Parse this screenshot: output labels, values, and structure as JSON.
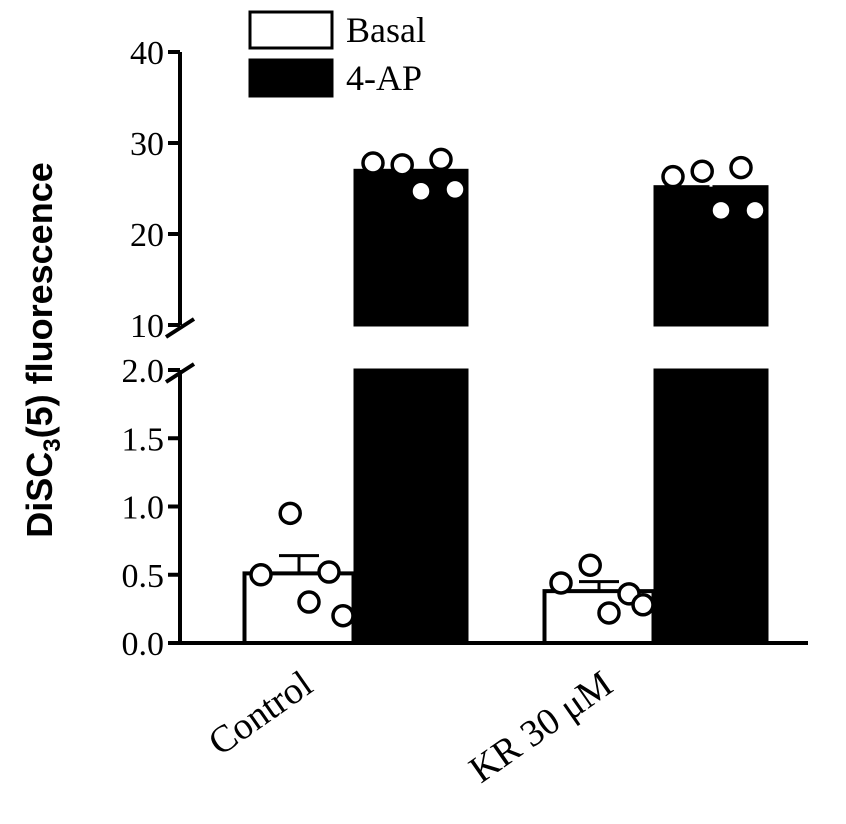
{
  "chart_data": {
    "type": "bar",
    "ylabel": {
      "main": "DiSC",
      "subscript": "3",
      "rest": "(5) fluorescence"
    },
    "categories": [
      "Control",
      "KR 30 μM"
    ],
    "axis_break": true,
    "ylim_lower": [
      0,
      2.0
    ],
    "ylim_upper": [
      10,
      40
    ],
    "yticks_lower": [
      {
        "value": 0.0,
        "label": "0.0"
      },
      {
        "value": 0.5,
        "label": "0.5"
      },
      {
        "value": 1.0,
        "label": "1.0"
      },
      {
        "value": 1.5,
        "label": "1.5"
      },
      {
        "value": 2.0,
        "label": "2.0"
      }
    ],
    "yticks_upper": [
      {
        "value": 10,
        "label": "10"
      },
      {
        "value": 20,
        "label": "20"
      },
      {
        "value": 30,
        "label": "30"
      },
      {
        "value": 40,
        "label": "40"
      }
    ],
    "series": [
      {
        "name": "Basal",
        "fill": "#ffffff",
        "values": [
          0.51,
          0.38
        ],
        "errors": [
          0.13,
          0.07
        ],
        "points": [
          [
            0.95,
            0.52,
            0.5,
            0.3,
            0.2
          ],
          [
            0.57,
            0.36,
            0.44,
            0.22,
            0.28
          ]
        ]
      },
      {
        "name": "4-AP",
        "fill": "#000000",
        "values": [
          27.0,
          25.2
        ],
        "errors": [
          0.7,
          0.9
        ],
        "points": [
          [
            27.6,
            28.2,
            27.8,
            24.7,
            24.9
          ],
          [
            26.9,
            27.3,
            26.3,
            22.6,
            22.6
          ]
        ]
      }
    ],
    "legend_position": "top"
  }
}
